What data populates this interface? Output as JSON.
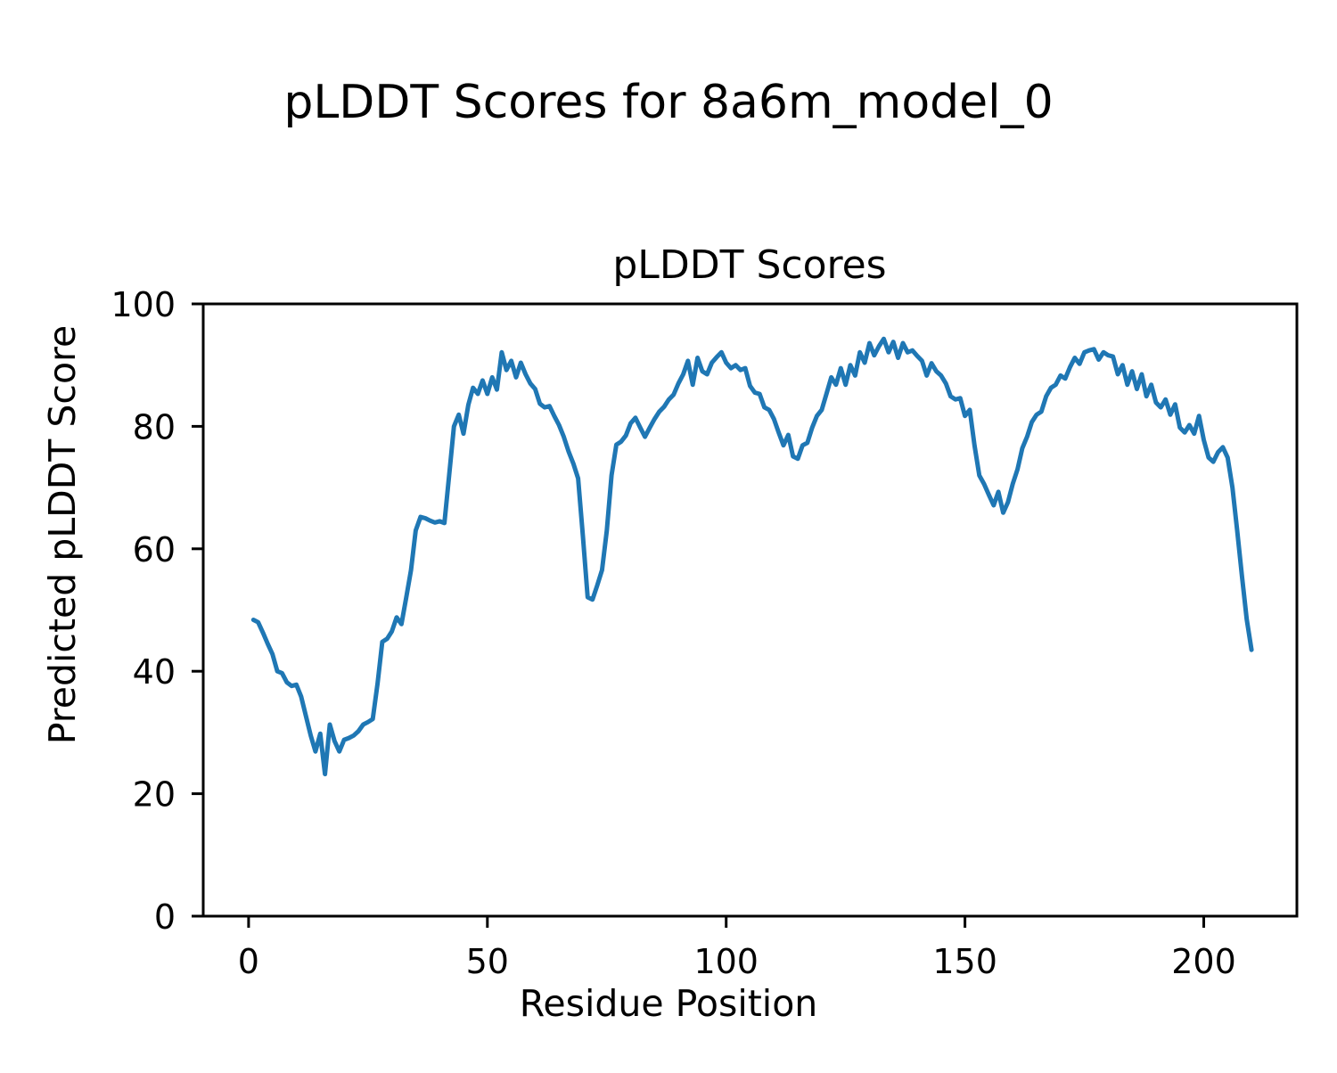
{
  "figure": {
    "suptitle": "pLDDT Scores for 8a6m_model_0",
    "background_color": "#ffffff",
    "spine_color": "#000000"
  },
  "chart_data": {
    "type": "line",
    "suptitle": "pLDDT Scores for 8a6m_model_0",
    "title": "pLDDT Scores",
    "xlabel": "Residue Position",
    "ylabel": "Predicted pLDDT Score",
    "line_color": "#1f77b4",
    "line_width": 5,
    "grid": false,
    "legend": "none",
    "xlim": [
      -9.5,
      219.5
    ],
    "ylim": [
      0,
      100
    ],
    "xticks": [
      0,
      50,
      100,
      150,
      200
    ],
    "yticks": [
      0,
      20,
      40,
      60,
      80,
      100
    ],
    "x_start": 1,
    "x_step": 1,
    "n_points": 210,
    "series_name": "pLDDT",
    "y": [
      48.4,
      48.0,
      46.3,
      44.5,
      42.8,
      40.0,
      39.7,
      38.2,
      37.6,
      37.8,
      35.9,
      32.7,
      29.5,
      26.9,
      29.8,
      23.2,
      31.3,
      28.6,
      26.9,
      28.8,
      29.1,
      29.5,
      30.2,
      31.3,
      31.7,
      32.2,
      38.0,
      44.8,
      45.3,
      46.5,
      48.8,
      47.7,
      52.0,
      56.5,
      63.0,
      65.2,
      65.0,
      64.6,
      64.3,
      64.5,
      64.2,
      72.0,
      80.0,
      81.9,
      78.8,
      83.5,
      86.3,
      85.3,
      87.5,
      85.3,
      88.0,
      86.0,
      92.1,
      89.2,
      90.7,
      88.0,
      90.4,
      88.5,
      87.0,
      86.1,
      83.7,
      83.1,
      83.3,
      81.7,
      80.2,
      78.3,
      75.9,
      73.9,
      71.5,
      62.0,
      52.1,
      51.7,
      54.0,
      56.5,
      63.0,
      72.0,
      77.0,
      77.5,
      78.5,
      80.5,
      81.4,
      79.8,
      78.3,
      79.8,
      81.2,
      82.4,
      83.2,
      84.4,
      85.2,
      87.0,
      88.5,
      90.7,
      86.8,
      91.2,
      89.0,
      88.5,
      90.4,
      91.3,
      92.1,
      90.4,
      89.5,
      90.0,
      89.2,
      89.5,
      86.6,
      85.5,
      85.3,
      83.1,
      82.7,
      81.2,
      79.0,
      76.9,
      78.6,
      75.1,
      74.7,
      76.9,
      77.3,
      79.8,
      81.7,
      82.7,
      85.3,
      88.0,
      86.8,
      89.5,
      86.8,
      90.0,
      88.3,
      92.1,
      90.4,
      93.6,
      91.6,
      93.1,
      94.3,
      92.1,
      93.8,
      91.2,
      93.6,
      92.1,
      92.4,
      91.5,
      90.7,
      88.3,
      90.3,
      89.0,
      88.3,
      87.0,
      84.9,
      84.4,
      84.6,
      81.7,
      82.7,
      76.9,
      72.0,
      70.6,
      68.8,
      67.1,
      69.3,
      65.9,
      67.6,
      70.6,
      73.0,
      76.4,
      78.3,
      80.7,
      81.9,
      82.4,
      84.9,
      86.3,
      86.8,
      88.3,
      87.8,
      89.7,
      91.2,
      90.2,
      92.1,
      92.4,
      92.6,
      90.9,
      92.1,
      91.6,
      91.4,
      88.5,
      90.0,
      86.8,
      89.0,
      86.1,
      88.5,
      84.9,
      86.8,
      83.9,
      83.1,
      84.4,
      81.9,
      83.6,
      79.8,
      79.0,
      80.2,
      78.8,
      81.7,
      77.8,
      74.9,
      74.2,
      75.8,
      76.6,
      74.9,
      70.0,
      63.0,
      55.5,
      48.5,
      43.5
    ]
  }
}
